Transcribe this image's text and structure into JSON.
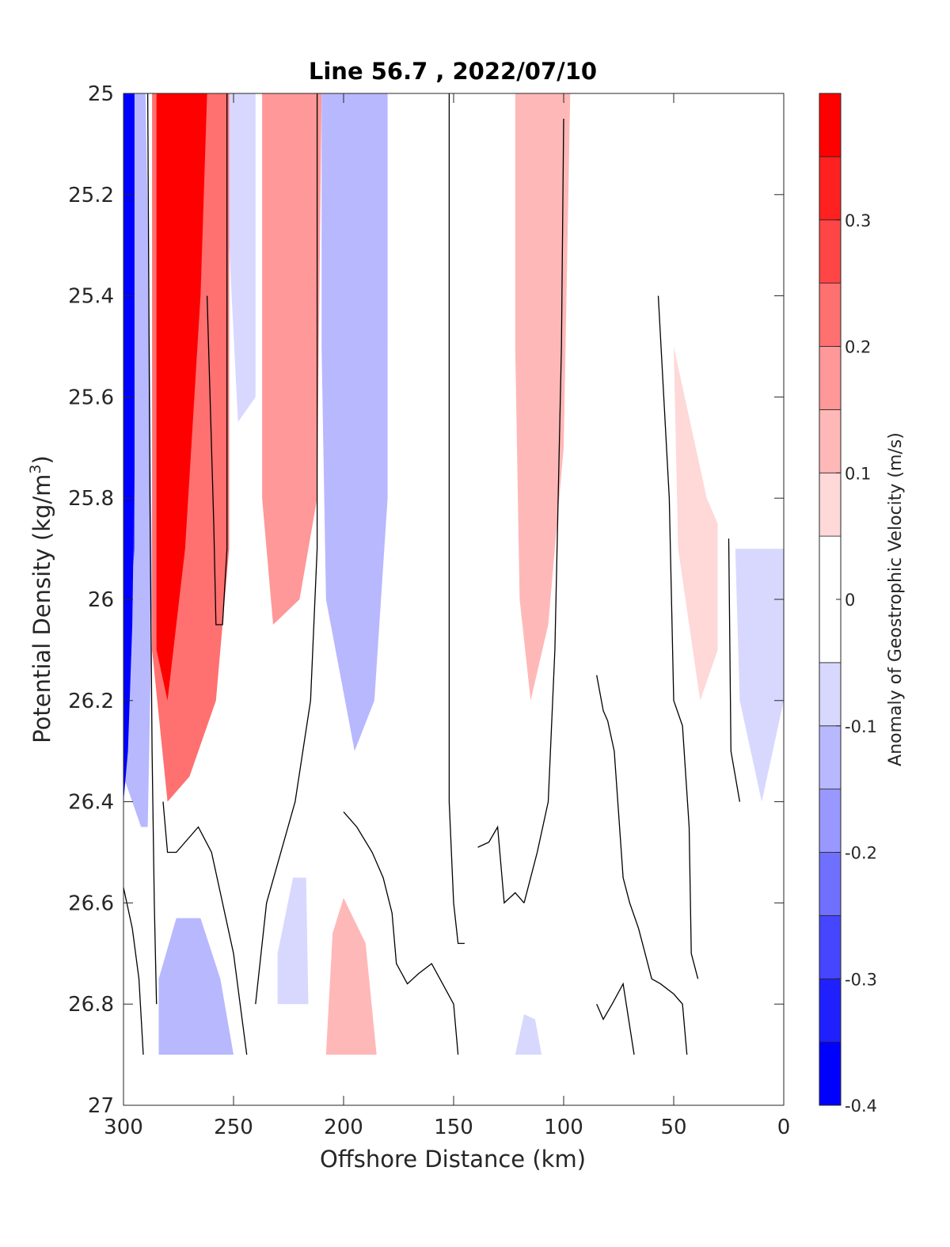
{
  "chart_data": {
    "type": "heatmap",
    "title": "Line 56.7 , 2022/07/10",
    "xlabel": "Offshore Distance (km)",
    "ylabel_main": "Potential Density (kg/m",
    "ylabel_sup": "3",
    "ylabel_close": ")",
    "colorbar_label": "Anomaly of Geostrophic Velocity (m/s)",
    "xlim": [
      300,
      0
    ],
    "ylim": [
      25,
      27
    ],
    "y_reversed": true,
    "x_ticks": [
      "300",
      "250",
      "200",
      "150",
      "100",
      "50",
      "0"
    ],
    "x_tick_values": [
      300,
      250,
      200,
      150,
      100,
      50,
      0
    ],
    "y_ticks": [
      "25",
      "25.2",
      "25.4",
      "25.6",
      "25.8",
      "26",
      "26.2",
      "26.4",
      "26.6",
      "26.8",
      "27"
    ],
    "y_tick_values": [
      25,
      25.2,
      25.4,
      25.6,
      25.8,
      26,
      26.2,
      26.4,
      26.6,
      26.8,
      27
    ],
    "colorbar": {
      "clim": [
        -0.4,
        0.4
      ],
      "levels": [
        -0.4,
        -0.35,
        -0.3,
        -0.25,
        -0.2,
        -0.15,
        -0.1,
        -0.05,
        0.05,
        0.1,
        0.15,
        0.2,
        0.25,
        0.3,
        0.35,
        0.4
      ],
      "tick_labels": [
        "-0.4",
        "-0.3",
        "-0.2",
        "-0.1",
        "0",
        "0.1",
        "0.2",
        "0.3"
      ],
      "tick_values": [
        -0.4,
        -0.3,
        -0.2,
        -0.1,
        0,
        0.1,
        0.2,
        0.3
      ],
      "colors": [
        "#0000ff",
        "#2020ff",
        "#4646ff",
        "#7070ff",
        "#9898ff",
        "#b8b8ff",
        "#d8d8ff",
        "#ffffff",
        "#ffd8d8",
        "#ffb8b8",
        "#ff9898",
        "#ff7070",
        "#ff4646",
        "#ff2020",
        "#ff0000"
      ]
    },
    "fields": [
      {
        "name": "blue-core-300",
        "value": -0.4,
        "points": [
          [
            300,
            25
          ],
          [
            295,
            25
          ],
          [
            295,
            25.75
          ],
          [
            296,
            26.05
          ],
          [
            298,
            26.3
          ],
          [
            300,
            26.4
          ]
        ]
      },
      {
        "name": "blue-core-300-mid",
        "value": -0.3,
        "points": [
          [
            300,
            25
          ],
          [
            296,
            25
          ],
          [
            295,
            25.6
          ],
          [
            295,
            25.9
          ],
          [
            298,
            26.05
          ],
          [
            300,
            26.1
          ]
        ]
      },
      {
        "name": "blue-core-300-in",
        "value": -0.2,
        "points": [
          [
            300,
            25
          ],
          [
            298,
            25
          ],
          [
            297,
            25.7
          ],
          [
            298,
            25.95
          ],
          [
            300,
            26.0
          ]
        ]
      },
      {
        "name": "blue-outer-300",
        "value": -0.12,
        "points": [
          [
            300,
            25
          ],
          [
            290,
            25
          ],
          [
            288,
            25.5
          ],
          [
            287,
            26.0
          ],
          [
            289,
            26.45
          ],
          [
            292,
            26.45
          ],
          [
            300,
            26.35
          ]
        ]
      },
      {
        "name": "red-core-275",
        "value": 0.35,
        "points": [
          [
            285,
            25
          ],
          [
            262,
            25
          ],
          [
            265,
            25.4
          ],
          [
            272,
            25.9
          ],
          [
            280,
            26.2
          ],
          [
            285,
            26.1
          ]
        ]
      },
      {
        "name": "red-outer-275",
        "value": 0.2,
        "points": [
          [
            287,
            25
          ],
          [
            252,
            25
          ],
          [
            252,
            25.9
          ],
          [
            258,
            26.2
          ],
          [
            270,
            26.35
          ],
          [
            280,
            26.4
          ],
          [
            287,
            26.1
          ]
        ]
      },
      {
        "name": "blue-250",
        "value": -0.1,
        "points": [
          [
            253,
            25
          ],
          [
            240,
            25
          ],
          [
            240,
            25.6
          ],
          [
            248,
            25.65
          ],
          [
            252,
            25.3
          ]
        ]
      },
      {
        "name": "red-225",
        "value": 0.15,
        "points": [
          [
            237,
            25
          ],
          [
            210,
            25
          ],
          [
            212,
            25.8
          ],
          [
            220,
            26.0
          ],
          [
            232,
            26.05
          ],
          [
            237,
            25.8
          ]
        ]
      },
      {
        "name": "blue-195",
        "value": -0.15,
        "points": [
          [
            210,
            25
          ],
          [
            180,
            25
          ],
          [
            180,
            25.8
          ],
          [
            186,
            26.2
          ],
          [
            195,
            26.3
          ],
          [
            208,
            26.0
          ],
          [
            210,
            25.5
          ]
        ]
      },
      {
        "name": "red-115",
        "value": 0.12,
        "points": [
          [
            122,
            25
          ],
          [
            97,
            25
          ],
          [
            100,
            25.7
          ],
          [
            107,
            26.05
          ],
          [
            115,
            26.2
          ],
          [
            120,
            26.0
          ],
          [
            122,
            25.5
          ]
        ]
      },
      {
        "name": "red-45",
        "value": 0.08,
        "points": [
          [
            50,
            25.5
          ],
          [
            35,
            25.8
          ],
          [
            30,
            25.85
          ],
          [
            30,
            26.1
          ],
          [
            38,
            26.2
          ],
          [
            48,
            25.9
          ]
        ]
      },
      {
        "name": "blue-15",
        "value": -0.1,
        "points": [
          [
            22,
            25.9
          ],
          [
            0,
            25.9
          ],
          [
            0,
            26.2
          ],
          [
            10,
            26.4
          ],
          [
            20,
            26.2
          ]
        ]
      },
      {
        "name": "blue-270-deep",
        "value": -0.12,
        "points": [
          [
            284,
            26.9
          ],
          [
            250,
            26.9
          ],
          [
            256,
            26.75
          ],
          [
            265,
            26.63
          ],
          [
            276,
            26.63
          ],
          [
            284,
            26.75
          ]
        ]
      },
      {
        "name": "red-195-deep",
        "value": 0.1,
        "points": [
          [
            208,
            26.9
          ],
          [
            185,
            26.9
          ],
          [
            190,
            26.68
          ],
          [
            200,
            26.59
          ],
          [
            205,
            26.66
          ]
        ]
      },
      {
        "name": "blue-225-deep",
        "value": -0.1,
        "points": [
          [
            230,
            26.8
          ],
          [
            216,
            26.8
          ],
          [
            217,
            26.55
          ],
          [
            223,
            26.55
          ],
          [
            230,
            26.7
          ]
        ]
      },
      {
        "name": "blue-115-deep",
        "value": -0.08,
        "points": [
          [
            122,
            26.9
          ],
          [
            110,
            26.9
          ],
          [
            113,
            26.83
          ],
          [
            118,
            26.82
          ]
        ]
      }
    ],
    "zero_contours": [
      [
        [
          289,
          25
        ],
        [
          288,
          25.8
        ],
        [
          287,
          26.3
        ],
        [
          286,
          26.6
        ],
        [
          285,
          26.8
        ]
      ],
      [
        [
          253,
          25
        ],
        [
          253,
          25.9
        ],
        [
          255,
          26.05
        ],
        [
          258,
          26.05
        ],
        [
          259,
          25.85
        ],
        [
          262,
          25.4
        ]
      ],
      [
        [
          212,
          25
        ],
        [
          212,
          25.9
        ],
        [
          215,
          26.2
        ],
        [
          222,
          26.4
        ],
        [
          235,
          26.6
        ],
        [
          240,
          26.8
        ]
      ],
      [
        [
          152,
          25
        ],
        [
          152,
          26.4
        ],
        [
          150,
          26.6
        ],
        [
          148,
          26.68
        ],
        [
          145,
          26.68
        ]
      ],
      [
        [
          100,
          25.05
        ],
        [
          101,
          25.5
        ],
        [
          104,
          26.1
        ],
        [
          107,
          26.4
        ],
        [
          112,
          26.5
        ],
        [
          118,
          26.6
        ]
      ],
      [
        [
          57,
          25.4
        ],
        [
          52,
          25.8
        ],
        [
          50,
          26.2
        ],
        [
          46,
          26.25
        ],
        [
          43,
          26.45
        ],
        [
          42,
          26.7
        ],
        [
          39,
          26.75
        ]
      ],
      [
        [
          25,
          25.88
        ],
        [
          24,
          26.3
        ],
        [
          20,
          26.4
        ]
      ],
      [
        [
          300,
          26.57
        ],
        [
          296,
          26.65
        ],
        [
          293,
          26.75
        ],
        [
          291,
          26.9
        ]
      ],
      [
        [
          282,
          26.4
        ],
        [
          280,
          26.5
        ],
        [
          276,
          26.5
        ],
        [
          266,
          26.45
        ],
        [
          260,
          26.5
        ],
        [
          255,
          26.6
        ],
        [
          250,
          26.7
        ],
        [
          247,
          26.8
        ],
        [
          244,
          26.9
        ]
      ],
      [
        [
          200,
          26.42
        ],
        [
          194,
          26.45
        ],
        [
          187,
          26.5
        ],
        [
          182,
          26.55
        ],
        [
          178,
          26.62
        ],
        [
          176,
          26.72
        ],
        [
          171,
          26.76
        ],
        [
          166,
          26.74
        ],
        [
          160,
          26.72
        ],
        [
          155,
          26.76
        ],
        [
          150,
          26.8
        ],
        [
          148,
          26.9
        ]
      ],
      [
        [
          139,
          26.49
        ],
        [
          134,
          26.48
        ],
        [
          130,
          26.45
        ],
        [
          127,
          26.6
        ],
        [
          122,
          26.58
        ],
        [
          118,
          26.6
        ]
      ],
      [
        [
          85,
          26.15
        ],
        [
          82,
          26.22
        ],
        [
          80,
          26.24
        ],
        [
          77,
          26.3
        ],
        [
          73,
          26.55
        ],
        [
          70,
          26.6
        ],
        [
          66,
          26.65
        ],
        [
          63,
          26.7
        ],
        [
          60,
          26.75
        ],
        [
          56,
          26.76
        ],
        [
          50,
          26.78
        ],
        [
          46,
          26.8
        ],
        [
          44,
          26.9
        ]
      ],
      [
        [
          85,
          26.8
        ],
        [
          82,
          26.83
        ],
        [
          78,
          26.8
        ],
        [
          73,
          26.76
        ],
        [
          68,
          26.9
        ]
      ]
    ]
  }
}
